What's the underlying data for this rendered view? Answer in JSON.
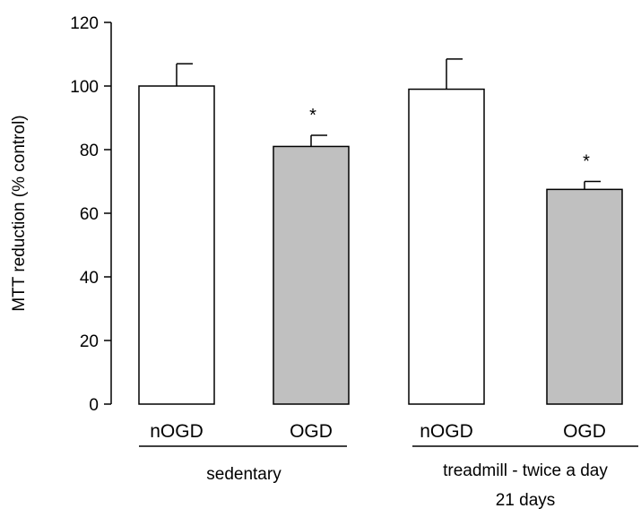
{
  "chart_data": {
    "type": "bar",
    "ylabel": "MTT reduction (% control)",
    "ylim": [
      0,
      120
    ],
    "yticks": [
      0,
      20,
      40,
      60,
      80,
      100,
      120
    ],
    "bars": [
      {
        "category": "nOGD",
        "group": "sedentary",
        "value": 100,
        "error": 7,
        "color": "#ffffff",
        "significance": ""
      },
      {
        "category": "OGD",
        "group": "sedentary",
        "value": 81,
        "error": 3.5,
        "color": "#c0c0c0",
        "significance": "*"
      },
      {
        "category": "nOGD",
        "group": "treadmill",
        "value": 99,
        "error": 9.5,
        "color": "#ffffff",
        "significance": ""
      },
      {
        "category": "OGD",
        "group": "treadmill",
        "value": 67.5,
        "error": 2.5,
        "color": "#c0c0c0",
        "significance": "*"
      }
    ],
    "groups": [
      {
        "id": "sedentary",
        "label_lines": [
          "sedentary"
        ]
      },
      {
        "id": "treadmill",
        "label_lines": [
          "treadmill - twice a day",
          "21 days"
        ]
      }
    ],
    "grid": false,
    "legend": "none"
  }
}
